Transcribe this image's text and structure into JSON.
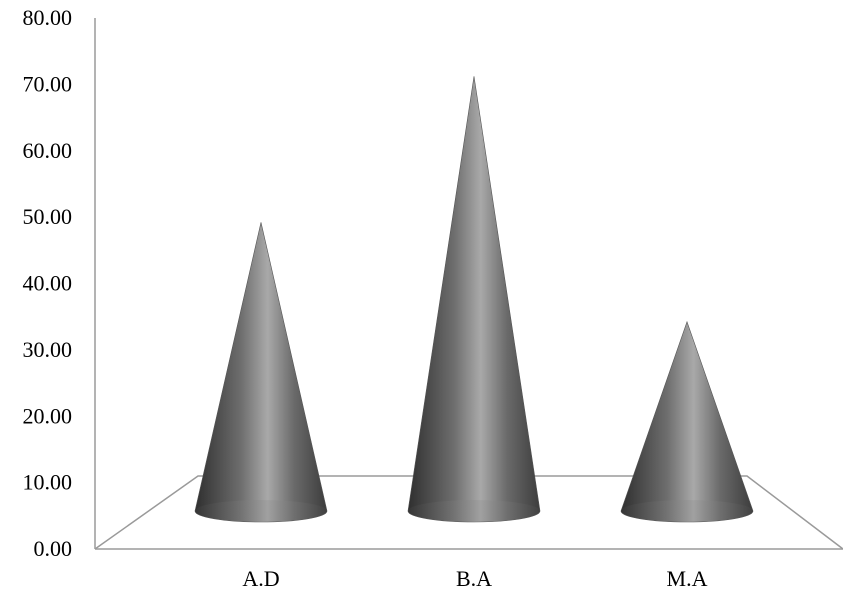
{
  "chart_data": {
    "type": "bar",
    "bar_shape": "cone",
    "categories": [
      "A.D",
      "B.A",
      "M.A"
    ],
    "values": [
      43.5,
      65.5,
      28.5
    ],
    "ylim": [
      0,
      80
    ],
    "yticks": [
      "0.00",
      "10.00",
      "20.00",
      "30.00",
      "40.00",
      "50.00",
      "60.00",
      "70.00",
      "80.00"
    ],
    "title": "",
    "xlabel": "",
    "ylabel": "",
    "grid": false,
    "legend": "none",
    "colors": {
      "cone_dark": "#3a3a3a",
      "cone_light": "#a8a8a8",
      "axis": "#9a9a9a"
    }
  }
}
